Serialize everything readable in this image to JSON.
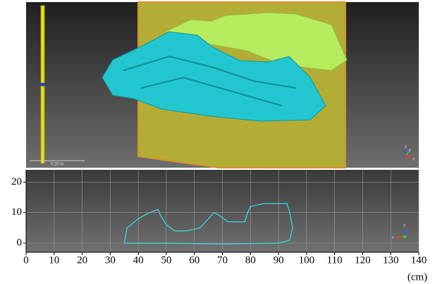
{
  "chart_data": {
    "type": "line",
    "x_label": "(cm)",
    "x": [
      35,
      36,
      40,
      44,
      47,
      48,
      50,
      53,
      57,
      62,
      65,
      67,
      69,
      72,
      76,
      78,
      79,
      80,
      85,
      93,
      94,
      95,
      94,
      90,
      70,
      50,
      35
    ],
    "values": [
      0,
      5,
      8,
      10,
      11,
      9,
      6,
      4,
      4,
      5,
      8,
      10,
      9,
      7,
      7,
      7,
      10,
      12,
      13,
      13,
      10,
      5,
      1,
      0,
      -0.3,
      0,
      0
    ],
    "color": "#3ccfd6",
    "xlim": [
      0,
      140
    ],
    "xticks": [
      0,
      10,
      20,
      30,
      40,
      50,
      60,
      70,
      80,
      90,
      100,
      110,
      120,
      130,
      140
    ],
    "ylim": [
      -3,
      24
    ],
    "yticks": [
      0,
      10,
      20
    ],
    "grid": true
  },
  "viewer": {
    "scale_label": "0.20 m",
    "top_axes": [
      "z",
      "y",
      "x"
    ],
    "bottom_axes": [
      "z",
      "x"
    ]
  }
}
